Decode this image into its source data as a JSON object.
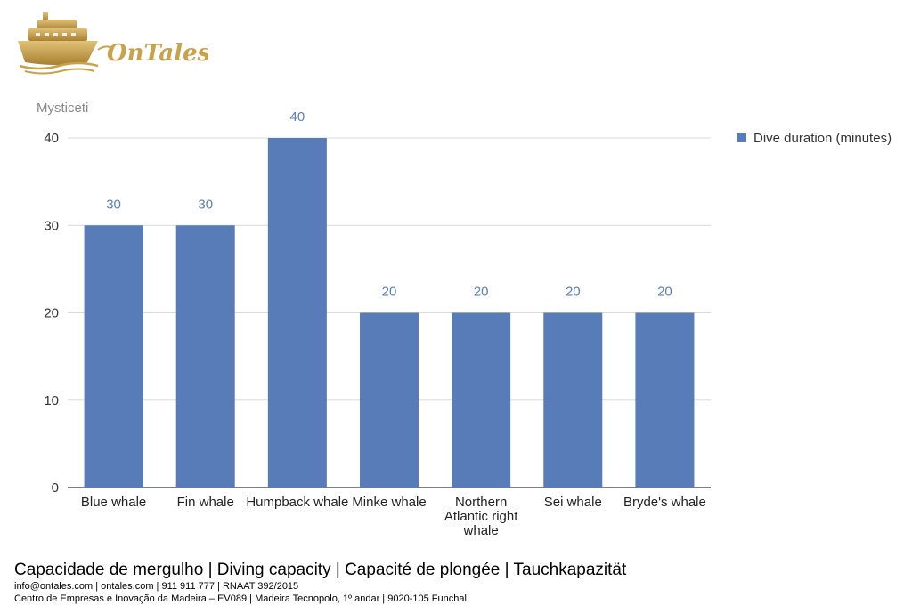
{
  "brand": {
    "logo_text": "OnTales",
    "gold": "#c9a24a",
    "gold_dark": "#a07a2c"
  },
  "chart_data": {
    "type": "bar",
    "title": "Mysticeti",
    "categories": [
      "Blue whale",
      "Fin whale",
      "Humpback whale",
      "Minke whale",
      "Northern Atlantic right whale",
      "Sei whale",
      "Bryde's whale"
    ],
    "series": [
      {
        "name": "Dive duration (minutes)",
        "values": [
          30,
          30,
          40,
          20,
          20,
          20,
          20
        ],
        "color": "#587cb8"
      }
    ],
    "yticks": [
      0,
      10,
      20,
      30,
      40
    ],
    "ylim": [
      0,
      40
    ],
    "grid": true,
    "legend_position": "right",
    "data_labels": true
  },
  "footer": {
    "title": "Capacidade de mergulho | Diving capacity | Capacité de plongée | Tauchkapazität",
    "contact": "info@ontales.com | ontales.com | 911 911 777 | RNAAT 392/2015",
    "address": "Centro de Empresas e Inovação da Madeira – EV089 | Madeira Tecnopolo, 1º andar | 9020-105 Funchal"
  }
}
